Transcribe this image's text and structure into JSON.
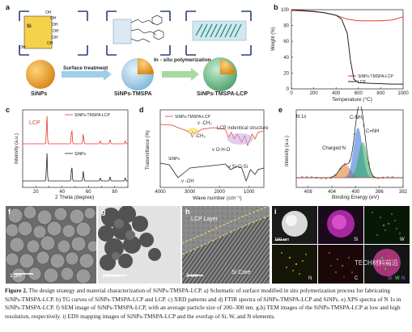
{
  "panels": {
    "a": {
      "letter": "a",
      "si_label": "Si",
      "oh_labels": [
        "OH",
        "OH",
        "OH",
        "OH",
        "OH",
        "OH",
        "OH"
      ],
      "step1": "Surface treatment",
      "step2": "In - situ polymerization",
      "names": [
        "SiNPs",
        "SiNPs-TMSPA",
        "SiNPs-TMSPA-LCP"
      ]
    },
    "b": {
      "letter": "b",
      "ylabel": "Weight (%)",
      "xlabel": "Temperature (°C)",
      "legend": [
        "SiNPs-TMSPA-LCP",
        "LCP"
      ]
    },
    "c": {
      "letter": "c",
      "ylabel": "Intensity (a.u.)",
      "xlabel": "2 Theta (degree)",
      "tag_lcp": "LCP"
    },
    "d": {
      "letter": "d",
      "ylabel": "Transmittance (%)",
      "xlabel": "Wave number (cm⁻¹)",
      "ann1": "v -CH₂",
      "ann2": "v -CH₃",
      "ann3": "LCP indentical structure",
      "ann4": "v O-H-O",
      "ann5": "v -OH",
      "ann6": "v Si-O-Si"
    },
    "e": {
      "letter": "e",
      "title": "N 1s",
      "ylabel": "Intensity (a.u.)",
      "xlabel": "Binding Energy (eV)",
      "ann1": "C-NH₂",
      "ann2": "C=NH",
      "ann3": "Charged N"
    },
    "f": {
      "letter": "f",
      "scale": "1 μm"
    },
    "g": {
      "letter": "g",
      "scale": "100 nm"
    },
    "h": {
      "letter": "h",
      "scale": "2 nm",
      "layer": "LCP Layer",
      "core": "Si Core"
    },
    "i": {
      "letter": "i",
      "scale": "100 nm",
      "tiles": [
        "Si",
        "W",
        "N",
        "C"
      ],
      "merge": [
        "Si",
        "W",
        "N"
      ]
    }
  },
  "watermark": "TECH材料前沿",
  "caption": {
    "label": "Figure 2.",
    "text": " The design strategy and material characterization of SiNPs-TMSPA-LCP. a) Schematic of surface modified in situ polymerization process for fabricating SiNPs-TMSPA-LCP. b) TG curves of SiNPs-TMSPA-LCP and LCP. c) XRD patterns and d) FTIR spectra of SiNPs-TMSPA-LCP and SiNPs. e) XPS spectra of N 1s in SiNPs-TMSPA-LCP. f) SEM image of SiNPs-TMSPA-LCP, with an average particle size of 200–300 nm. g,h) TEM images of the SiNPs-TMSPA-LCP at low and high resolution, respectively. i) EDS mapping images of SiNPs-TMSPA-LCP and the overlap of Si, W, and N elements."
  },
  "chart_data": [
    {
      "panel": "b",
      "type": "line",
      "xlabel": "Temperature (°C)",
      "ylabel": "Weight (%)",
      "xlim": [
        0,
        1000
      ],
      "ylim": [
        0,
        100
      ],
      "xticks": [
        0,
        200,
        400,
        600,
        800,
        1000
      ],
      "yticks": [
        0,
        20,
        40,
        60,
        80,
        100
      ],
      "legend_position": "bottom-right",
      "series": [
        {
          "name": "SiNPs-TMSPA-LCP",
          "color": "#e8392f",
          "x": [
            0,
            100,
            200,
            300,
            400,
            500,
            600,
            700,
            800,
            900,
            1000
          ],
          "y": [
            99,
            98.5,
            97.5,
            96,
            93,
            88,
            86,
            86,
            86,
            87,
            91
          ]
        },
        {
          "name": "LCP",
          "color": "#222222",
          "x": [
            0,
            100,
            200,
            300,
            400,
            450,
            500,
            530,
            560,
            600,
            700,
            800,
            900,
            1000
          ],
          "y": [
            100,
            99,
            98,
            96,
            93,
            88,
            70,
            35,
            12,
            8,
            7,
            6.5,
            6,
            6
          ]
        }
      ]
    },
    {
      "panel": "c",
      "type": "line",
      "xlabel": "2 Theta (degree)",
      "ylabel": "Intensity (a.u.)",
      "xlim": [
        10,
        90
      ],
      "xticks": [
        10,
        20,
        30,
        40,
        50,
        60,
        70,
        80,
        90
      ],
      "legend_position": "top-right",
      "peaks": [
        28.4,
        47.3,
        56.1,
        69.1,
        76.4,
        88.0
      ],
      "series": [
        {
          "name": "SiNPs-TMSPA-LCP",
          "color": "#e8392f",
          "rel_intensity": [
            1.0,
            0.55,
            0.35,
            0.1,
            0.15,
            0.1
          ]
        },
        {
          "name": "SiNPs",
          "color": "#222222",
          "rel_intensity": [
            1.0,
            0.55,
            0.35,
            0.1,
            0.15,
            0.1
          ]
        }
      ]
    },
    {
      "panel": "d",
      "type": "line",
      "xlabel": "Wave number (cm⁻¹)",
      "ylabel": "Transmittance (%)",
      "xlim": [
        4000,
        500
      ],
      "xticks": [
        4000,
        3000,
        2000,
        1000
      ],
      "legend_position": "top",
      "series": [
        {
          "name": "SiNPs-TMSPA-LCP",
          "color": "#e8392f"
        },
        {
          "name": "SiNPs",
          "color": "#222222"
        }
      ]
    },
    {
      "panel": "e",
      "type": "line",
      "xlabel": "Binding Energy (eV)",
      "ylabel": "Intensity (a.u.)",
      "xlim": [
        410,
        392
      ],
      "xticks": [
        408,
        404,
        400,
        396,
        392
      ],
      "components": [
        {
          "name": "Charged N",
          "center": 401.8,
          "color": "#e07a2a"
        },
        {
          "name": "C-NH₂",
          "center": 399.6,
          "color": "#2f6fd6"
        },
        {
          "name": "C=NH",
          "center": 398.8,
          "color": "#2aa85a"
        }
      ]
    }
  ]
}
